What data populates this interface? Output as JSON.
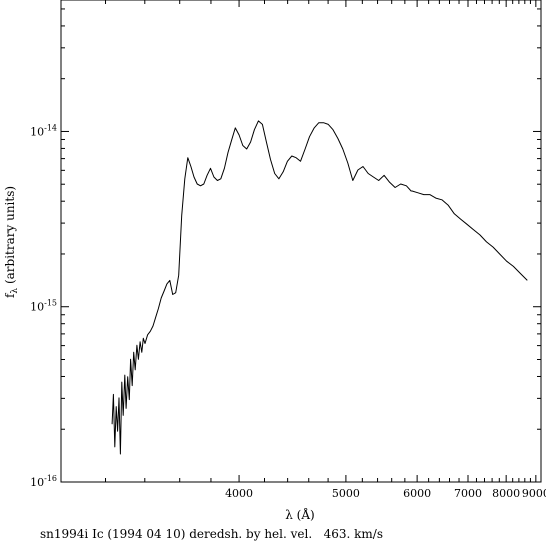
{
  "chart_data": {
    "type": "line",
    "title": "",
    "xlabel": "λ (Å)",
    "ylabel": "f",
    "ylabel_sub": "λ",
    "ylabel_rest": " (arbitrary units)",
    "caption": "sn1994i Ic (1994 04 10) deredsh. by hel. vel.   463. km/s",
    "x_scale": "reciprocal",
    "y_scale": "log",
    "xlim": [
      3000,
      9200
    ],
    "ylim_log10": [
      -16,
      -13.25
    ],
    "x_ticks": [
      4000,
      5000,
      6000,
      7000,
      8000,
      9000
    ],
    "x_tick_labels": [
      "4000",
      "5000",
      "6000",
      "7000",
      "8000",
      "9000"
    ],
    "y_ticks_log10": [
      -16,
      -15,
      -14
    ],
    "y_tick_labels": [
      {
        "base": "10",
        "exp": "-16"
      },
      {
        "base": "10",
        "exp": "-15"
      },
      {
        "base": "10",
        "exp": "-14"
      }
    ],
    "grid": false,
    "line_color": "#000000",
    "series": [
      {
        "x": [
          3232,
          3238,
          3245,
          3252,
          3259,
          3266,
          3273,
          3280,
          3287,
          3295,
          3302,
          3310,
          3318,
          3325,
          3333,
          3341,
          3349,
          3358,
          3366,
          3375,
          3384,
          3392,
          3401,
          3415,
          3430,
          3445,
          3460,
          3475,
          3491,
          3508,
          3524,
          3541,
          3558,
          3576,
          3594,
          3612,
          3631,
          3650,
          3669,
          3689,
          3709,
          3731,
          3752,
          3774,
          3797,
          3820,
          3844,
          3868,
          3893,
          3919,
          3945,
          3972,
          4000,
          4028,
          4058,
          4088,
          4118,
          4150,
          4183,
          4216,
          4250,
          4286,
          4322,
          4360,
          4398,
          4438,
          4478,
          4520,
          4564,
          4608,
          4655,
          4702,
          4751,
          4802,
          4854,
          4908,
          4964,
          5022,
          5082,
          5144,
          5208,
          5275,
          5344,
          5416,
          5491,
          5569,
          5650,
          5735,
          5824,
          5900,
          5917,
          6014,
          6115,
          6221,
          6332,
          6449,
          6571,
          6700,
          6835,
          6977,
          7127,
          7285,
          7452,
          7628,
          7815,
          8013,
          8224,
          8448,
          8686
        ],
        "y_log10": [
          -15.67,
          -15.5,
          -15.8,
          -15.57,
          -15.71,
          -15.52,
          -15.84,
          -15.43,
          -15.62,
          -15.39,
          -15.58,
          -15.4,
          -15.53,
          -15.3,
          -15.45,
          -15.26,
          -15.36,
          -15.22,
          -15.3,
          -15.2,
          -15.26,
          -15.18,
          -15.21,
          -15.16,
          -15.14,
          -15.11,
          -15.06,
          -15.01,
          -14.95,
          -14.91,
          -14.87,
          -14.85,
          -14.93,
          -14.92,
          -14.82,
          -14.48,
          -14.27,
          -14.15,
          -14.2,
          -14.26,
          -14.3,
          -14.31,
          -14.3,
          -14.25,
          -14.21,
          -14.26,
          -14.28,
          -14.27,
          -14.21,
          -14.12,
          -14.05,
          -13.98,
          -14.02,
          -14.08,
          -14.1,
          -14.06,
          -13.99,
          -13.94,
          -13.96,
          -14.06,
          -14.16,
          -14.24,
          -14.27,
          -14.23,
          -14.17,
          -14.14,
          -14.15,
          -14.17,
          -14.1,
          -14.03,
          -13.98,
          -13.95,
          -13.95,
          -13.96,
          -13.99,
          -14.04,
          -14.1,
          -14.18,
          -14.28,
          -14.22,
          -14.2,
          -14.24,
          -14.26,
          -14.28,
          -14.25,
          -14.29,
          -14.32,
          -14.3,
          -14.31,
          -14.34,
          -14.34,
          -14.35,
          -14.36,
          -14.36,
          -14.38,
          -14.39,
          -14.42,
          -14.47,
          -14.5,
          -14.53,
          -14.56,
          -14.59,
          -14.63,
          -14.66,
          -14.7,
          -14.74,
          -14.77,
          -14.81,
          -14.85
        ]
      }
    ]
  }
}
